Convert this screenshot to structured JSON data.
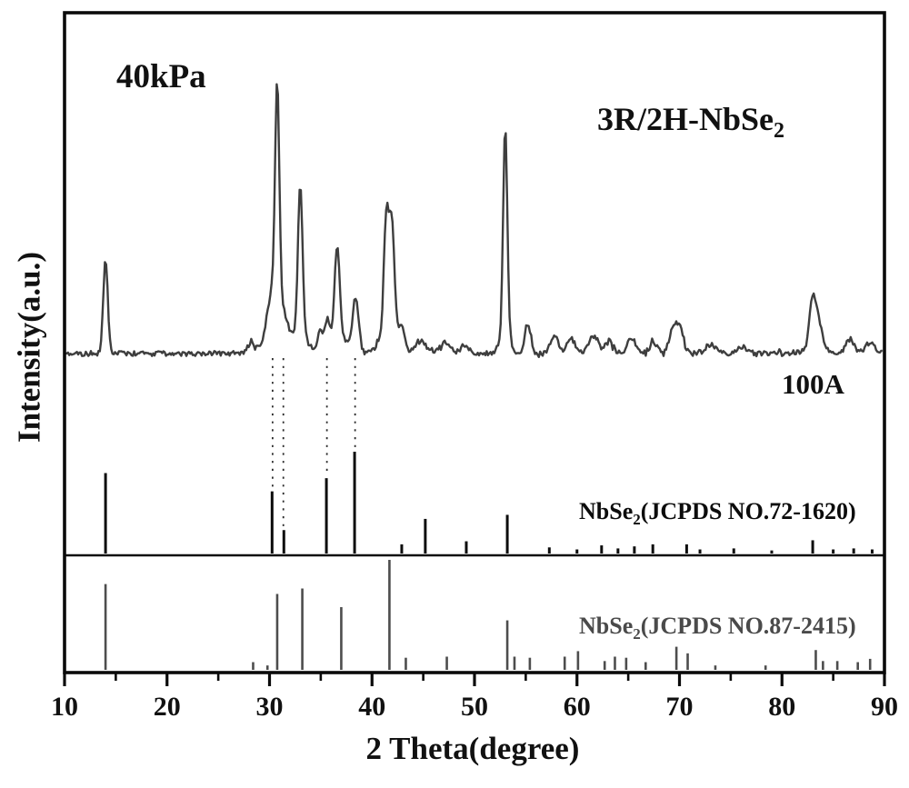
{
  "chart_data": {
    "type": "line",
    "title": "",
    "x_axis": {
      "label": "2 Theta(degree)",
      "min": 10,
      "max": 90,
      "major_ticks": [
        10,
        20,
        30,
        40,
        50,
        60,
        70,
        80,
        90
      ],
      "minor_tick_step": 5
    },
    "y_axis": {
      "label": "Intensity(a.u.)",
      "ticks": "none (arbitrary units)"
    },
    "grid": false,
    "legend_position": "none",
    "annotations": {
      "pressure": "40kPa",
      "current": "100A",
      "sample": {
        "main": "3R/2H-NbSe",
        "sub": "2"
      }
    },
    "main_pattern": {
      "description": "measured XRD trace of 3R/2H-NbSe2 synthesized at 40kPa, 100A",
      "color": "#3e3e3e",
      "peaks_units": "[two_theta_deg, relative_intensity_0_100, sigma_deg]",
      "peaks": [
        [
          14.0,
          44,
          0.22
        ],
        [
          28.2,
          5,
          0.35
        ],
        [
          30.25,
          18,
          0.5
        ],
        [
          30.75,
          100,
          0.2
        ],
        [
          30.8,
          14,
          0.9
        ],
        [
          31.3,
          8,
          0.4
        ],
        [
          33.0,
          70,
          0.22
        ],
        [
          33.0,
          9,
          0.7
        ],
        [
          34.9,
          9,
          0.25
        ],
        [
          35.6,
          13,
          0.28
        ],
        [
          36.6,
          42,
          0.25
        ],
        [
          36.7,
          8,
          0.8
        ],
        [
          38.4,
          25,
          0.3
        ],
        [
          41.4,
          56,
          0.24
        ],
        [
          41.7,
          10,
          0.9
        ],
        [
          41.95,
          50,
          0.24
        ],
        [
          42.9,
          9,
          0.3
        ],
        [
          44.8,
          6,
          0.5
        ],
        [
          47.1,
          5,
          0.5
        ],
        [
          49.0,
          4,
          0.4
        ],
        [
          53.0,
          96,
          0.2
        ],
        [
          53.0,
          10,
          0.5
        ],
        [
          55.2,
          13,
          0.28
        ],
        [
          57.8,
          8,
          0.4
        ],
        [
          59.4,
          7,
          0.4
        ],
        [
          61.6,
          8,
          0.45
        ],
        [
          63.1,
          6,
          0.4
        ],
        [
          65.3,
          7,
          0.45
        ],
        [
          67.5,
          5,
          0.4
        ],
        [
          69.4,
          12,
          0.4
        ],
        [
          70.1,
          10,
          0.35
        ],
        [
          73.0,
          4,
          0.5
        ],
        [
          76.1,
          3,
          0.5
        ],
        [
          83.0,
          21,
          0.3
        ],
        [
          83.2,
          5,
          0.8
        ],
        [
          83.6,
          10,
          0.3
        ],
        [
          86.6,
          7,
          0.4
        ],
        [
          88.6,
          5,
          0.45
        ]
      ]
    },
    "reference_patterns": [
      {
        "label": {
          "pre": "NbSe",
          "sub": "2",
          "post": "(JCPDS NO.72-1620)"
        },
        "color": "#0c0c0c",
        "sticks_units": "[two_theta_deg, relative_intensity_0_100]",
        "sticks": [
          [
            14.0,
            79
          ],
          [
            30.25,
            61
          ],
          [
            31.4,
            23
          ],
          [
            35.55,
            74
          ],
          [
            38.3,
            100
          ],
          [
            42.9,
            9
          ],
          [
            45.2,
            34
          ],
          [
            49.2,
            12
          ],
          [
            53.2,
            38
          ],
          [
            57.3,
            6
          ],
          [
            60.0,
            4
          ],
          [
            62.4,
            8
          ],
          [
            64.0,
            5
          ],
          [
            65.6,
            7
          ],
          [
            67.4,
            9
          ],
          [
            70.7,
            9
          ],
          [
            72.0,
            4
          ],
          [
            75.3,
            5
          ],
          [
            79.0,
            3
          ],
          [
            83.0,
            13
          ],
          [
            85.0,
            4
          ],
          [
            87.0,
            5
          ],
          [
            88.8,
            4
          ]
        ]
      },
      {
        "label": {
          "pre": "NbSe",
          "sub": "2",
          "post": "(JCPDS NO.87-2415)"
        },
        "color": "#4d4d4d",
        "sticks_units": "[two_theta_deg, relative_intensity_0_100]",
        "sticks": [
          [
            14.0,
            78
          ],
          [
            28.4,
            7
          ],
          [
            29.8,
            4
          ],
          [
            30.75,
            69
          ],
          [
            33.2,
            74
          ],
          [
            37.0,
            57
          ],
          [
            41.7,
            100
          ],
          [
            43.3,
            11
          ],
          [
            47.3,
            12
          ],
          [
            53.2,
            45
          ],
          [
            53.9,
            12
          ],
          [
            55.4,
            11
          ],
          [
            58.8,
            12
          ],
          [
            60.1,
            17
          ],
          [
            62.7,
            8
          ],
          [
            63.7,
            12
          ],
          [
            64.8,
            11
          ],
          [
            66.7,
            7
          ],
          [
            69.7,
            21
          ],
          [
            70.8,
            15
          ],
          [
            73.5,
            4
          ],
          [
            78.4,
            4
          ],
          [
            83.3,
            18
          ],
          [
            84.0,
            8
          ],
          [
            85.4,
            8
          ],
          [
            87.4,
            7
          ],
          [
            88.6,
            10
          ]
        ]
      }
    ],
    "dotted_guides_two_theta": [
      30.3,
      31.35,
      35.6,
      38.35
    ]
  }
}
